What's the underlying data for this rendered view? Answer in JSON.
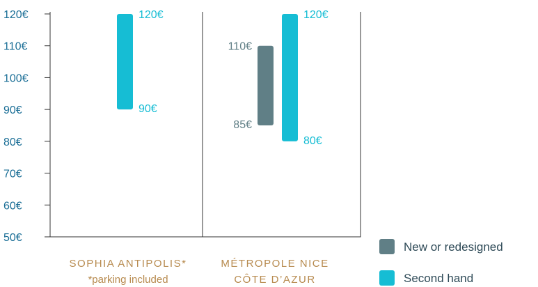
{
  "chart_data": {
    "type": "bar",
    "subtype": "floating-range",
    "ylim": [
      50,
      120
    ],
    "yticks": [
      50,
      60,
      70,
      80,
      90,
      100,
      110,
      120
    ],
    "ytick_labels": [
      "50€",
      "60€",
      "70€",
      "80€",
      "90€",
      "100€",
      "110€",
      "120€"
    ],
    "categories": [
      {
        "name": "SOPHIA ANTIPOLIS*",
        "note": "*parking included"
      },
      {
        "name": "MÉTROPOLE NICE",
        "note": "CÔTE D’AZUR"
      }
    ],
    "series": [
      {
        "name": "New or redesigned",
        "color": "#607f86",
        "ranges": [
          null,
          {
            "low": 85,
            "high": 110,
            "low_label": "85€",
            "high_label": "110€"
          }
        ]
      },
      {
        "name": "Second hand",
        "color": "#16bdd4",
        "ranges": [
          {
            "low": 90,
            "high": 120,
            "low_label": "90€",
            "high_label": "120€"
          },
          {
            "low": 80,
            "high": 120,
            "low_label": "80€",
            "high_label": "120€"
          }
        ]
      }
    ],
    "legend_position": "bottom-right",
    "grid": false
  }
}
